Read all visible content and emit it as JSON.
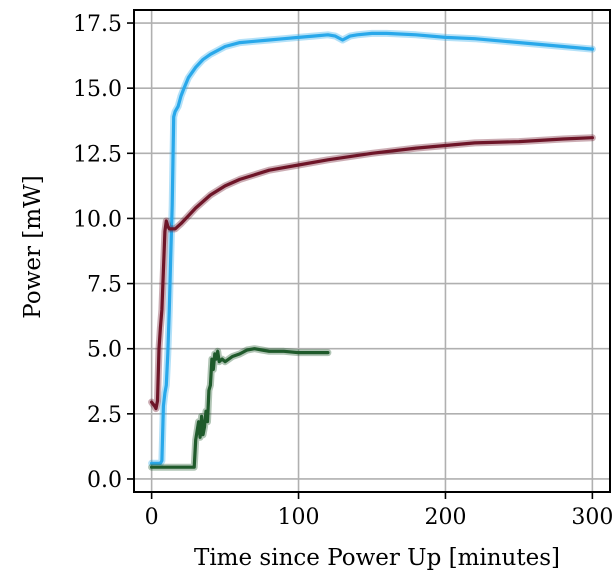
{
  "chart_data": {
    "type": "line",
    "title": "",
    "xlabel": "Time since Power Up [minutes]",
    "ylabel": "Power [mW]",
    "xlim": [
      -12,
      312
    ],
    "ylim": [
      -0.5,
      18.0
    ],
    "x_ticks": [
      0,
      100,
      200,
      300
    ],
    "y_ticks": [
      0.0,
      2.5,
      5.0,
      7.5,
      10.0,
      12.5,
      15.0,
      17.5
    ],
    "x_tick_labels": [
      "0",
      "100",
      "200",
      "300"
    ],
    "y_tick_labels": [
      "0.0",
      "2.5",
      "5.0",
      "7.5",
      "10.0",
      "12.5",
      "15.0",
      "17.5"
    ],
    "grid": true,
    "series": [
      {
        "color": "#29a8ea",
        "x": [
          0,
          3,
          6,
          7,
          8,
          9,
          10,
          11,
          12,
          13,
          14,
          15,
          16,
          18,
          20,
          22,
          25,
          30,
          35,
          40,
          50,
          60,
          70,
          80,
          90,
          100,
          110,
          120,
          125,
          130,
          135,
          140,
          150,
          160,
          180,
          200,
          220,
          240,
          260,
          280,
          300
        ],
        "y": [
          0.6,
          0.6,
          0.6,
          0.7,
          2.8,
          3.3,
          3.6,
          4.8,
          6.5,
          8.5,
          10.5,
          13.9,
          14.1,
          14.3,
          14.7,
          15.0,
          15.4,
          15.8,
          16.1,
          16.3,
          16.6,
          16.75,
          16.8,
          16.85,
          16.9,
          16.95,
          17.0,
          17.05,
          17.0,
          16.85,
          17.0,
          17.05,
          17.1,
          17.1,
          17.05,
          16.95,
          16.9,
          16.8,
          16.7,
          16.6,
          16.5
        ]
      },
      {
        "color": "#6e1528",
        "x": [
          0,
          2,
          3,
          4,
          5,
          6,
          7,
          8,
          9,
          10,
          11,
          12,
          14,
          16,
          18,
          20,
          25,
          30,
          40,
          50,
          60,
          80,
          100,
          120,
          150,
          180,
          200,
          220,
          250,
          280,
          300
        ],
        "y": [
          2.95,
          2.8,
          2.7,
          3.0,
          5.0,
          5.8,
          6.5,
          8.0,
          9.5,
          9.9,
          9.7,
          9.6,
          9.6,
          9.6,
          9.7,
          9.8,
          10.1,
          10.4,
          10.9,
          11.25,
          11.5,
          11.85,
          12.05,
          12.25,
          12.5,
          12.7,
          12.8,
          12.9,
          12.95,
          13.05,
          13.1
        ]
      },
      {
        "color": "#1f5a2b",
        "x": [
          0,
          10,
          20,
          29,
          30,
          32,
          33,
          34,
          35,
          36,
          37,
          38,
          39,
          40,
          41,
          42,
          43,
          44,
          45,
          46,
          48,
          50,
          55,
          60,
          65,
          70,
          75,
          80,
          90,
          100,
          110,
          120
        ],
        "y": [
          0.45,
          0.45,
          0.45,
          0.45,
          1.5,
          2.2,
          1.6,
          2.4,
          1.7,
          2.0,
          2.6,
          2.2,
          3.4,
          3.6,
          4.6,
          4.2,
          4.8,
          4.6,
          4.9,
          4.5,
          4.6,
          4.5,
          4.7,
          4.8,
          4.95,
          5.0,
          4.95,
          4.9,
          4.9,
          4.85,
          4.85,
          4.85
        ]
      }
    ]
  }
}
